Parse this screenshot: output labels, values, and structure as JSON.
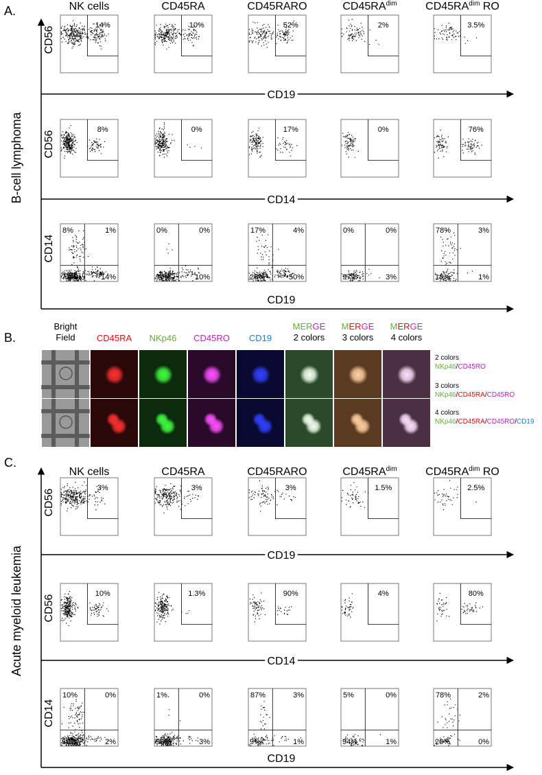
{
  "panels": [
    {
      "label": "A.",
      "side_label": "B-cell lymphoma",
      "columns": [
        {
          "text": "NK cells"
        },
        {
          "text": "CD45RA"
        },
        {
          "text": "CD45RARO"
        },
        {
          "text": "CD45RA",
          "sup": "dim"
        },
        {
          "text": "CD45RA",
          "sup": "dim",
          "suffix": " RO"
        }
      ],
      "rows": [
        {
          "y_label": "CD56",
          "x_label": "CD19",
          "gates": [
            "14%",
            "10%",
            "52%",
            "2%",
            "3.5%"
          ]
        },
        {
          "y_label": "CD56",
          "x_label": "CD14",
          "gates": [
            "8%",
            "0%",
            "17%",
            "0%",
            "76%"
          ]
        },
        {
          "y_label": "CD14",
          "x_label": "CD19",
          "quadrants": [
            [
              "8%",
              "1%",
              "77%",
              "14%"
            ],
            [
              "0%",
              "0%",
              "90%",
              "10%"
            ],
            [
              "17%",
              "4%",
              "29%",
              "50%"
            ],
            [
              "0%",
              "0%",
              "97%",
              "3%"
            ],
            [
              "78%",
              "3%",
              "18%",
              "1%"
            ]
          ]
        }
      ]
    },
    {
      "label": "C.",
      "side_label": "Acute myeloid leukemia",
      "columns": [
        {
          "text": "NK cells"
        },
        {
          "text": "CD45RA"
        },
        {
          "text": "CD45RARO"
        },
        {
          "text": "CD45RA",
          "sup": "dim"
        },
        {
          "text": "CD45RA",
          "sup": "dim",
          "suffix": " RO"
        }
      ],
      "rows": [
        {
          "y_label": "CD56",
          "x_label": "CD19",
          "gates": [
            "3%",
            "3%",
            "3%",
            "1.5%",
            "2.5%"
          ]
        },
        {
          "y_label": "CD56",
          "x_label": "CD14",
          "gates": [
            "10%",
            "1.3%",
            "90%",
            "4%",
            "80%"
          ]
        },
        {
          "y_label": "CD14",
          "x_label": "CD19",
          "quadrants": [
            [
              "10%",
              "0%",
              "88%",
              "2%"
            ],
            [
              "1%",
              "0%",
              "96%",
              "3%"
            ],
            [
              "87%",
              "3%",
              "9%",
              "1%"
            ],
            [
              "5%",
              "0%",
              "94%",
              "1%"
            ],
            [
              "78%",
              "2%",
              "20%",
              "0%"
            ]
          ]
        }
      ]
    }
  ],
  "panel_b": {
    "label": "B.",
    "columns": [
      [
        [
          {
            "text": "Bright"
          }
        ],
        [
          {
            "text": "Field"
          }
        ]
      ],
      [
        [
          {
            "text": "CD45RA",
            "color": "#e01010"
          }
        ]
      ],
      [
        [
          {
            "text": "NKp46",
            "color": "#5fae3a"
          }
        ]
      ],
      [
        [
          {
            "text": "CD45RO",
            "color": "#c020c0"
          }
        ]
      ],
      [
        [
          {
            "text": "CD19",
            "color": "#1f7cc8"
          }
        ]
      ],
      [
        [
          {
            "text": "MER",
            "color": "#5fae3a"
          },
          {
            "text": "GE",
            "color": "#c020c0"
          }
        ],
        [
          {
            "text": "2 colors"
          }
        ]
      ],
      [
        [
          {
            "text": "M",
            "color": "#5fae3a"
          },
          {
            "text": "ER",
            "color": "#e01010"
          },
          {
            "text": "GE",
            "color": "#c020c0"
          }
        ],
        [
          {
            "text": "3 colors"
          }
        ]
      ],
      [
        [
          {
            "text": "M",
            "color": "#5fae3a"
          },
          {
            "text": "ER",
            "color": "#e01010"
          },
          {
            "text": "G",
            "color": "#c020c0"
          },
          {
            "text": "E",
            "color": "#1f7cc8"
          }
        ],
        [
          {
            "text": "4 colors"
          }
        ]
      ]
    ],
    "legend": [
      {
        "title": "2 colors",
        "parts": [
          {
            "text": "NKp46",
            "color": "#5fae3a"
          },
          {
            "text": "/"
          },
          {
            "text": "CD45RO",
            "color": "#c020c0"
          }
        ]
      },
      {
        "title": "3 colors",
        "parts": [
          {
            "text": "NKp46",
            "color": "#5fae3a"
          },
          {
            "text": "/"
          },
          {
            "text": "CD45RA",
            "color": "#e01010"
          },
          {
            "text": "/"
          },
          {
            "text": "CD45RO",
            "color": "#c020c0"
          }
        ]
      },
      {
        "title": "4 colors",
        "parts": [
          {
            "text": "NKp46",
            "color": "#5fae3a"
          },
          {
            "text": "/"
          },
          {
            "text": "CD45RA",
            "color": "#e01010"
          },
          {
            "text": "/"
          },
          {
            "text": "CD45RO",
            "color": "#c020c0"
          },
          {
            "text": "/"
          },
          {
            "text": "CD19",
            "color": "#1f7cc8"
          }
        ]
      }
    ]
  }
}
